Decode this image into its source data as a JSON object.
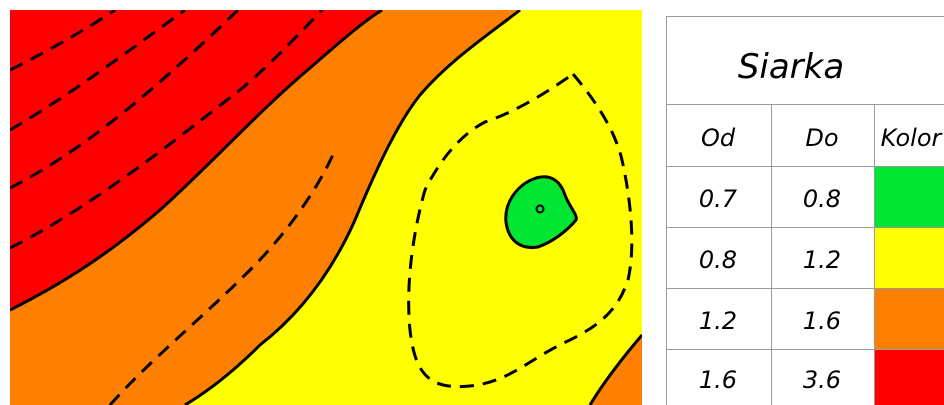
{
  "legend": {
    "title": "Siarka",
    "headers": {
      "from": "Od",
      "to": "Do",
      "color": "Kolor"
    },
    "rows": [
      {
        "from": "0.7",
        "to": "0.8",
        "color": "#00e632"
      },
      {
        "from": "0.8",
        "to": "1.2",
        "color": "#ffff00"
      },
      {
        "from": "1.2",
        "to": "1.6",
        "color": "#ff8000"
      },
      {
        "from": "1.6",
        "to": "3.6",
        "color": "#ff0000"
      }
    ]
  },
  "map": {
    "zone_colors": {
      "high": "#ff0000",
      "mid_high": "#ff8000",
      "mid": "#ffff00",
      "low": "#00e632"
    },
    "line_color": "#000000"
  }
}
